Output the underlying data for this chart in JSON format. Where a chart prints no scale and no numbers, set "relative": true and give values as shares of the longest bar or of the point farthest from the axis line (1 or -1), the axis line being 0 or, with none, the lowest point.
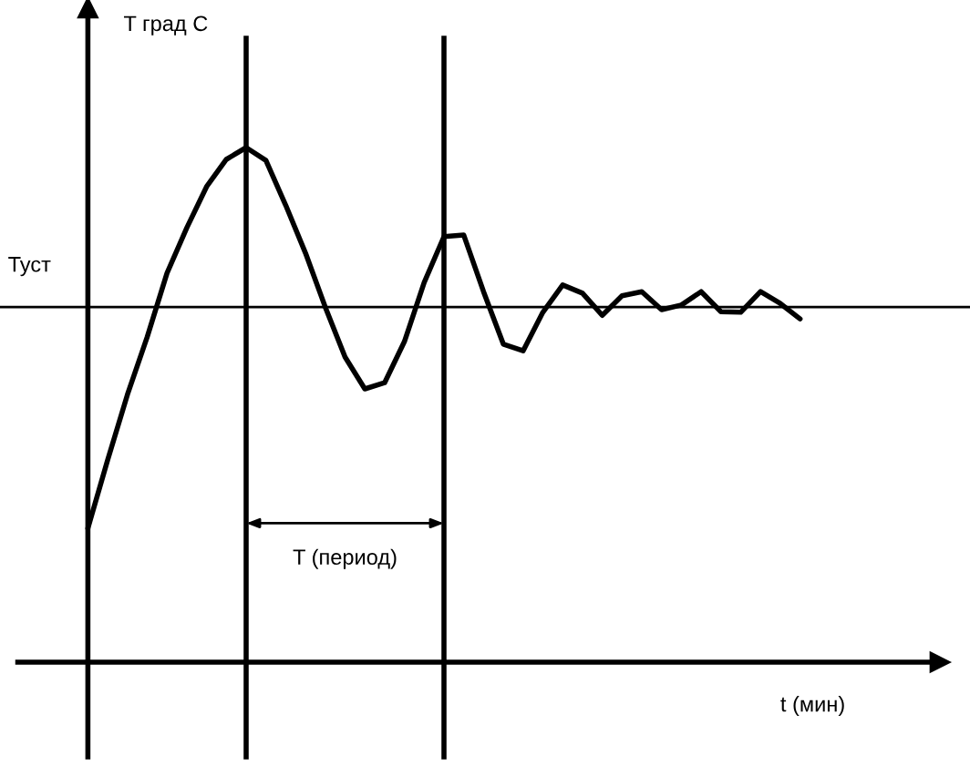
{
  "chart_data": {
    "type": "line",
    "relative": true,
    "categories": [
      null,
      null,
      null,
      null,
      null,
      null,
      null,
      null,
      null,
      null,
      null,
      null,
      null,
      null,
      null,
      null,
      null,
      null,
      null,
      null,
      null,
      null,
      null,
      null,
      null,
      null,
      null,
      null,
      null,
      null,
      null,
      null,
      null,
      null,
      null,
      null,
      null
    ],
    "series": [
      {
        "color": "#000000",
        "values": [
          0.26,
          0.393,
          0.52,
          0.632,
          0.756,
          0.844,
          0.924,
          0.977,
          1.0,
          0.975,
          0.888,
          0.795,
          0.69,
          0.593,
          0.531,
          0.543,
          0.623,
          0.738,
          0.827,
          0.83,
          0.72,
          0.618,
          0.605,
          0.68,
          0.733,
          0.717,
          0.674,
          0.712,
          0.72,
          0.685,
          0.694,
          0.72,
          0.681,
          0.68,
          0.72,
          0.697,
          0.667
        ]
      }
    ],
    "xlabel": "t (мин)",
    "ref_lines": [
      {
        "axis": "y",
        "value": 0.69,
        "label": "Туст",
        "color": "#000000"
      }
    ],
    "annotations": [
      "T град С",
      "T (период)"
    ],
    "grid": "x",
    "legend": false,
    "marker": "none",
    "line_style": "solid"
  }
}
